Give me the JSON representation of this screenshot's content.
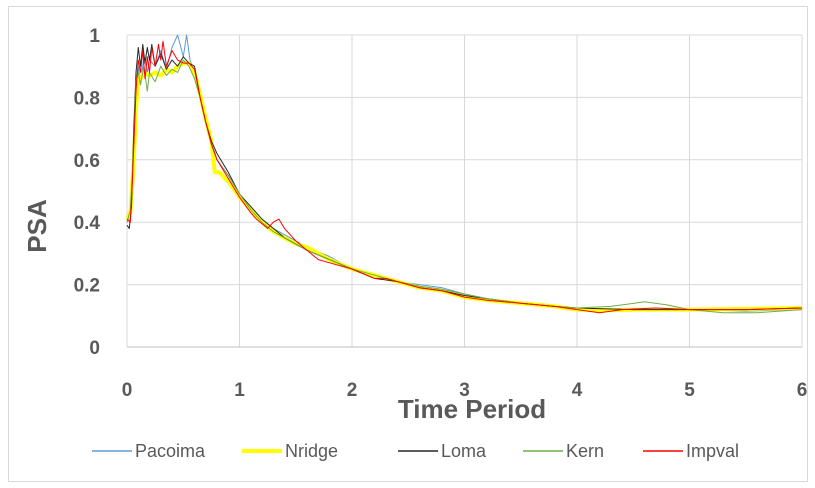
{
  "chart_data": {
    "type": "line",
    "title": "",
    "xlabel": "Time Period",
    "ylabel": "PSA",
    "xlim": [
      0,
      6
    ],
    "ylim": [
      0,
      1
    ],
    "xticks": [
      "0",
      "1",
      "2",
      "3",
      "4",
      "5",
      "6"
    ],
    "yticks": [
      "0",
      "0.2",
      "0.4",
      "0.6",
      "0.8",
      "1"
    ],
    "grid": true,
    "legend_position": "bottom",
    "series": [
      {
        "name": "Pacoima",
        "color": "#5b9bd5",
        "width": 1,
        "points": [
          [
            0,
            0.4
          ],
          [
            0.03,
            0.42
          ],
          [
            0.05,
            0.55
          ],
          [
            0.08,
            0.8
          ],
          [
            0.1,
            0.9
          ],
          [
            0.12,
            0.85
          ],
          [
            0.15,
            0.93
          ],
          [
            0.18,
            0.88
          ],
          [
            0.2,
            0.92
          ],
          [
            0.25,
            0.9
          ],
          [
            0.3,
            0.95
          ],
          [
            0.35,
            0.89
          ],
          [
            0.4,
            0.96
          ],
          [
            0.45,
            1.0
          ],
          [
            0.5,
            0.93
          ],
          [
            0.53,
            1.0
          ],
          [
            0.56,
            0.92
          ],
          [
            0.6,
            0.88
          ],
          [
            0.65,
            0.82
          ],
          [
            0.7,
            0.74
          ],
          [
            0.75,
            0.66
          ],
          [
            0.8,
            0.6
          ],
          [
            0.9,
            0.55
          ],
          [
            1.0,
            0.49
          ],
          [
            1.1,
            0.44
          ],
          [
            1.2,
            0.41
          ],
          [
            1.3,
            0.38
          ],
          [
            1.4,
            0.36
          ],
          [
            1.5,
            0.34
          ],
          [
            1.6,
            0.32
          ],
          [
            1.8,
            0.29
          ],
          [
            2.0,
            0.25
          ],
          [
            2.2,
            0.23
          ],
          [
            2.4,
            0.21
          ],
          [
            2.6,
            0.2
          ],
          [
            2.8,
            0.19
          ],
          [
            3.0,
            0.17
          ],
          [
            3.2,
            0.155
          ],
          [
            3.5,
            0.14
          ],
          [
            3.8,
            0.13
          ],
          [
            4.0,
            0.12
          ],
          [
            4.2,
            0.118
          ],
          [
            4.5,
            0.12
          ],
          [
            4.8,
            0.122
          ],
          [
            5.0,
            0.12
          ],
          [
            5.5,
            0.115
          ],
          [
            6.0,
            0.12
          ]
        ]
      },
      {
        "name": "Nridge",
        "color": "#ffff00",
        "width": 4,
        "points": [
          [
            0,
            0.41
          ],
          [
            0.03,
            0.43
          ],
          [
            0.06,
            0.6
          ],
          [
            0.08,
            0.76
          ],
          [
            0.1,
            0.87
          ],
          [
            0.12,
            0.86
          ],
          [
            0.15,
            0.88
          ],
          [
            0.2,
            0.87
          ],
          [
            0.25,
            0.88
          ],
          [
            0.3,
            0.87
          ],
          [
            0.35,
            0.89
          ],
          [
            0.4,
            0.88
          ],
          [
            0.45,
            0.9
          ],
          [
            0.5,
            0.91
          ],
          [
            0.55,
            0.91
          ],
          [
            0.6,
            0.88
          ],
          [
            0.65,
            0.81
          ],
          [
            0.7,
            0.73
          ],
          [
            0.75,
            0.66
          ],
          [
            0.78,
            0.56
          ],
          [
            0.82,
            0.56
          ],
          [
            0.9,
            0.53
          ],
          [
            1.0,
            0.48
          ],
          [
            1.1,
            0.44
          ],
          [
            1.2,
            0.4
          ],
          [
            1.3,
            0.37
          ],
          [
            1.4,
            0.35
          ],
          [
            1.5,
            0.33
          ],
          [
            1.6,
            0.32
          ],
          [
            1.8,
            0.28
          ],
          [
            2.0,
            0.25
          ],
          [
            2.2,
            0.23
          ],
          [
            2.4,
            0.21
          ],
          [
            2.6,
            0.19
          ],
          [
            2.8,
            0.18
          ],
          [
            3.0,
            0.16
          ],
          [
            3.2,
            0.15
          ],
          [
            3.5,
            0.14
          ],
          [
            3.8,
            0.13
          ],
          [
            4.0,
            0.12
          ],
          [
            4.3,
            0.118
          ],
          [
            4.5,
            0.12
          ],
          [
            5.0,
            0.12
          ],
          [
            5.5,
            0.122
          ],
          [
            6.0,
            0.125
          ]
        ]
      },
      {
        "name": "Loma",
        "color": "#262626",
        "width": 1,
        "points": [
          [
            0,
            0.39
          ],
          [
            0.02,
            0.38
          ],
          [
            0.04,
            0.45
          ],
          [
            0.06,
            0.7
          ],
          [
            0.08,
            0.88
          ],
          [
            0.1,
            0.96
          ],
          [
            0.12,
            0.9
          ],
          [
            0.14,
            0.97
          ],
          [
            0.16,
            0.91
          ],
          [
            0.18,
            0.96
          ],
          [
            0.2,
            0.92
          ],
          [
            0.22,
            0.97
          ],
          [
            0.25,
            0.9
          ],
          [
            0.3,
            0.94
          ],
          [
            0.35,
            0.89
          ],
          [
            0.4,
            0.92
          ],
          [
            0.45,
            0.9
          ],
          [
            0.5,
            0.93
          ],
          [
            0.55,
            0.91
          ],
          [
            0.6,
            0.9
          ],
          [
            0.65,
            0.8
          ],
          [
            0.7,
            0.72
          ],
          [
            0.75,
            0.66
          ],
          [
            0.8,
            0.62
          ],
          [
            0.9,
            0.56
          ],
          [
            1.0,
            0.49
          ],
          [
            1.1,
            0.45
          ],
          [
            1.2,
            0.41
          ],
          [
            1.3,
            0.38
          ],
          [
            1.4,
            0.35
          ],
          [
            1.5,
            0.33
          ],
          [
            1.6,
            0.31
          ],
          [
            1.8,
            0.28
          ],
          [
            2.0,
            0.25
          ],
          [
            2.2,
            0.22
          ],
          [
            2.4,
            0.21
          ],
          [
            2.6,
            0.19
          ],
          [
            2.8,
            0.18
          ],
          [
            3.0,
            0.165
          ],
          [
            3.2,
            0.155
          ],
          [
            3.5,
            0.14
          ],
          [
            3.8,
            0.13
          ],
          [
            4.0,
            0.125
          ],
          [
            4.5,
            0.12
          ],
          [
            5.0,
            0.12
          ],
          [
            5.5,
            0.12
          ],
          [
            6.0,
            0.125
          ]
        ]
      },
      {
        "name": "Kern",
        "color": "#70ad47",
        "width": 1,
        "points": [
          [
            0,
            0.4
          ],
          [
            0.03,
            0.44
          ],
          [
            0.06,
            0.65
          ],
          [
            0.08,
            0.85
          ],
          [
            0.1,
            0.88
          ],
          [
            0.12,
            0.84
          ],
          [
            0.15,
            0.9
          ],
          [
            0.18,
            0.82
          ],
          [
            0.2,
            0.88
          ],
          [
            0.25,
            0.85
          ],
          [
            0.3,
            0.9
          ],
          [
            0.35,
            0.87
          ],
          [
            0.4,
            0.89
          ],
          [
            0.45,
            0.88
          ],
          [
            0.5,
            0.92
          ],
          [
            0.55,
            0.9
          ],
          [
            0.6,
            0.86
          ],
          [
            0.65,
            0.8
          ],
          [
            0.7,
            0.72
          ],
          [
            0.75,
            0.65
          ],
          [
            0.8,
            0.6
          ],
          [
            0.9,
            0.55
          ],
          [
            1.0,
            0.49
          ],
          [
            1.1,
            0.44
          ],
          [
            1.2,
            0.4
          ],
          [
            1.3,
            0.37
          ],
          [
            1.4,
            0.35
          ],
          [
            1.5,
            0.33
          ],
          [
            1.6,
            0.31
          ],
          [
            1.8,
            0.28
          ],
          [
            2.0,
            0.25
          ],
          [
            2.2,
            0.23
          ],
          [
            2.4,
            0.21
          ],
          [
            2.6,
            0.195
          ],
          [
            2.8,
            0.185
          ],
          [
            3.0,
            0.17
          ],
          [
            3.2,
            0.155
          ],
          [
            3.5,
            0.14
          ],
          [
            3.8,
            0.13
          ],
          [
            4.0,
            0.125
          ],
          [
            4.3,
            0.13
          ],
          [
            4.6,
            0.145
          ],
          [
            4.8,
            0.135
          ],
          [
            5.0,
            0.12
          ],
          [
            5.3,
            0.11
          ],
          [
            5.6,
            0.11
          ],
          [
            6.0,
            0.12
          ]
        ]
      },
      {
        "name": "Impval",
        "color": "#ff0000",
        "width": 1,
        "points": [
          [
            0,
            0.41
          ],
          [
            0.03,
            0.4
          ],
          [
            0.05,
            0.55
          ],
          [
            0.08,
            0.82
          ],
          [
            0.1,
            0.92
          ],
          [
            0.12,
            0.88
          ],
          [
            0.14,
            0.95
          ],
          [
            0.16,
            0.86
          ],
          [
            0.18,
            0.93
          ],
          [
            0.2,
            0.88
          ],
          [
            0.22,
            0.96
          ],
          [
            0.25,
            0.9
          ],
          [
            0.28,
            0.97
          ],
          [
            0.3,
            0.92
          ],
          [
            0.32,
            0.98
          ],
          [
            0.35,
            0.9
          ],
          [
            0.4,
            0.95
          ],
          [
            0.45,
            0.92
          ],
          [
            0.5,
            0.91
          ],
          [
            0.55,
            0.91
          ],
          [
            0.6,
            0.89
          ],
          [
            0.65,
            0.8
          ],
          [
            0.7,
            0.72
          ],
          [
            0.75,
            0.65
          ],
          [
            0.8,
            0.6
          ],
          [
            0.9,
            0.54
          ],
          [
            1.0,
            0.48
          ],
          [
            1.1,
            0.43
          ],
          [
            1.15,
            0.41
          ],
          [
            1.25,
            0.38
          ],
          [
            1.3,
            0.4
          ],
          [
            1.35,
            0.41
          ],
          [
            1.4,
            0.38
          ],
          [
            1.5,
            0.34
          ],
          [
            1.6,
            0.31
          ],
          [
            1.7,
            0.28
          ],
          [
            1.8,
            0.27
          ],
          [
            2.0,
            0.25
          ],
          [
            2.2,
            0.22
          ],
          [
            2.3,
            0.22
          ],
          [
            2.4,
            0.21
          ],
          [
            2.6,
            0.19
          ],
          [
            2.8,
            0.18
          ],
          [
            3.0,
            0.16
          ],
          [
            3.2,
            0.15
          ],
          [
            3.5,
            0.14
          ],
          [
            3.8,
            0.13
          ],
          [
            4.0,
            0.12
          ],
          [
            4.2,
            0.11
          ],
          [
            4.4,
            0.12
          ],
          [
            4.7,
            0.125
          ],
          [
            5.0,
            0.12
          ],
          [
            5.5,
            0.12
          ],
          [
            6.0,
            0.125
          ]
        ]
      }
    ]
  }
}
